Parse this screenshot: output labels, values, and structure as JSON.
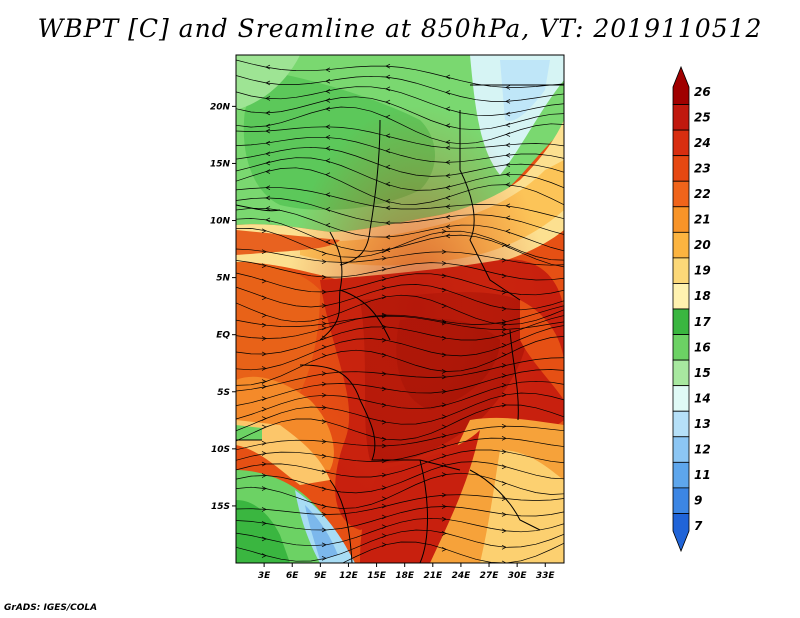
{
  "title": "WBPT [C] and Sreamline at 850hPa, VT: 2019110512",
  "credit": "GrADS: IGES/COLA",
  "map": {
    "lat_labels": [
      "20N",
      "15N",
      "10N",
      "5N",
      "EQ",
      "5S",
      "10S",
      "15S"
    ],
    "lat_values": [
      20,
      15,
      10,
      5,
      0,
      -5,
      -10,
      -15
    ],
    "lon_labels": [
      "3E",
      "6E",
      "9E",
      "12E",
      "15E",
      "18E",
      "21E",
      "24E",
      "27E",
      "30E",
      "33E"
    ],
    "lon_values": [
      3,
      6,
      9,
      12,
      15,
      18,
      21,
      24,
      27,
      30,
      33
    ],
    "lat_range": [
      -20,
      24.5
    ],
    "lon_range": [
      0,
      35
    ]
  },
  "legend": {
    "labels": [
      "26",
      "25",
      "24",
      "23",
      "22",
      "21",
      "20",
      "19",
      "18",
      "17",
      "16",
      "15",
      "14",
      "13",
      "12",
      "11",
      "9",
      "7"
    ],
    "colors": [
      "#a00000",
      "#c0180e",
      "#d82e10",
      "#e64812",
      "#f0641a",
      "#f89428",
      "#fcb440",
      "#fcd878",
      "#fff2b0",
      "#3ab640",
      "#6cd264",
      "#a8e8a0",
      "#e0faf6",
      "#b6e0f8",
      "#8cc6f4",
      "#5ea6ec",
      "#3c86e4",
      "#2064d8"
    ]
  }
}
